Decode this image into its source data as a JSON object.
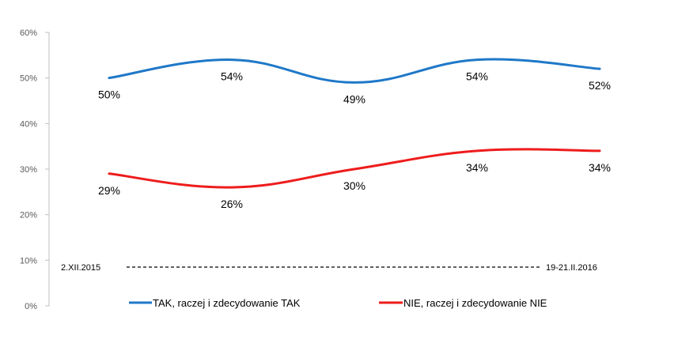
{
  "chart_data": {
    "type": "line",
    "title": "",
    "xlabel": "",
    "ylabel": "",
    "ylim": [
      0,
      60
    ],
    "y_ticks": [
      "0%",
      "10%",
      "20%",
      "30%",
      "40%",
      "50%",
      "60%"
    ],
    "x": [
      1,
      2,
      3,
      4,
      5
    ],
    "grid": false,
    "legend_position": "bottom",
    "period": {
      "start": "2.XII.2015",
      "end": "19-21.II.2016"
    },
    "series": [
      {
        "name": "TAK, raczej i zdecydowanie TAK",
        "color": "#1f78c8",
        "values": [
          50,
          54,
          49,
          54,
          52
        ],
        "labels": [
          "50%",
          "54%",
          "49%",
          "54%",
          "52%"
        ]
      },
      {
        "name": "NIE, raczej i zdecydowanie NIE",
        "color": "#ee1c1c",
        "values": [
          29,
          26,
          30,
          34,
          34
        ],
        "labels": [
          "29%",
          "26%",
          "30%",
          "34%",
          "34%"
        ]
      }
    ]
  }
}
